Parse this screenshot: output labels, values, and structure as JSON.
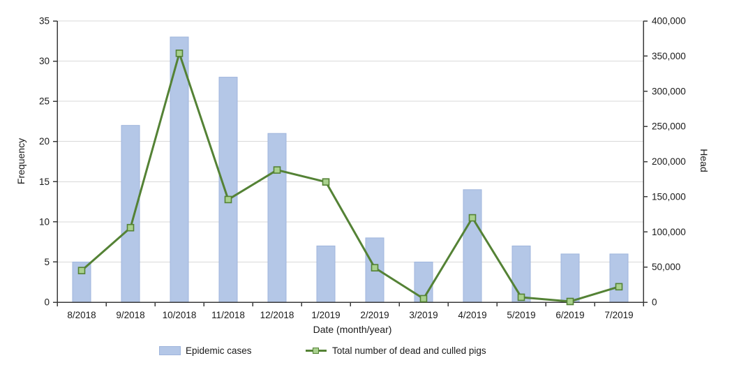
{
  "chart_data": {
    "type": "combo-bar-line",
    "title": "",
    "categories": [
      "8/2018",
      "9/2018",
      "10/2018",
      "11/2018",
      "12/2018",
      "1/2019",
      "2/2019",
      "3/2019",
      "4/2019",
      "5/2019",
      "6/2019",
      "7/2019"
    ],
    "series": [
      {
        "name": "Epidemic cases",
        "type": "bar",
        "axis": "left",
        "values": [
          5,
          22,
          33,
          28,
          21,
          7,
          8,
          5,
          14,
          7,
          6,
          6
        ]
      },
      {
        "name": "Total number of dead and culled pigs",
        "type": "line",
        "axis": "right",
        "values": [
          45000,
          106000,
          354000,
          146000,
          188000,
          171000,
          49000,
          5000,
          120000,
          7000,
          1000,
          22000
        ]
      }
    ],
    "xlabel": "Date (month/year)",
    "left_axis": {
      "label": "Frequency",
      "min": 0,
      "max": 35,
      "step": 5
    },
    "right_axis": {
      "label": "Head",
      "min": 0,
      "max": 400000,
      "step": 50000
    },
    "grid": "horizontal gridlines at left-axis ticks",
    "legend_position": "bottom-center"
  },
  "colors": {
    "bar_fill": "#b4c7e7",
    "bar_border": "#9fb5dc",
    "line": "#548235",
    "marker_fill": "#a9d18e",
    "gridline": "#d9d9d9",
    "axis": "#3a3a3a",
    "text": "#1a1a1a",
    "background": "#ffffff"
  }
}
